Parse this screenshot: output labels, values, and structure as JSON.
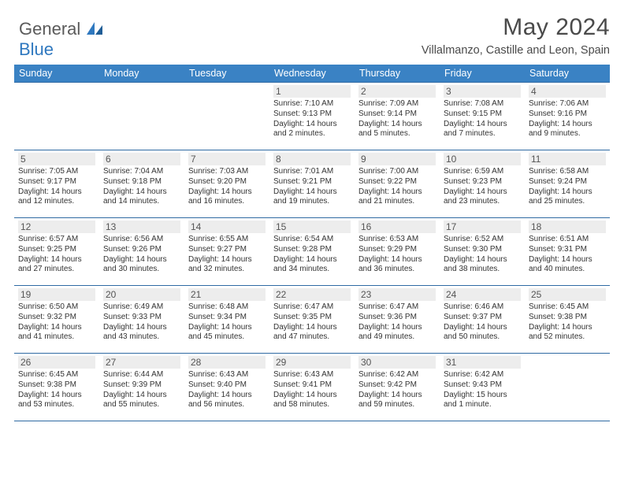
{
  "brand": {
    "part1": "General",
    "part2": "Blue"
  },
  "title": "May 2024",
  "location": "Villalmanzo, Castille and Leon, Spain",
  "colors": {
    "header_bg": "#3a82c4",
    "header_text": "#ffffff",
    "border": "#2f6aa3",
    "daynum_bg": "#ededed",
    "brand_gray": "#5a5a5a",
    "brand_blue": "#2f78bf",
    "page_bg": "#ffffff",
    "body_text": "#333333"
  },
  "typography": {
    "title_fontsize": 30,
    "location_fontsize": 14.5,
    "weekday_fontsize": 12.5,
    "daynum_fontsize": 12,
    "info_fontsize": 10
  },
  "layout": {
    "columns": 7,
    "rows": 5,
    "first_weekday_index": 3
  },
  "weekdays": [
    "Sunday",
    "Monday",
    "Tuesday",
    "Wednesday",
    "Thursday",
    "Friday",
    "Saturday"
  ],
  "weeks": [
    [
      null,
      null,
      null,
      {
        "n": "1",
        "sunrise": "Sunrise: 7:10 AM",
        "sunset": "Sunset: 9:13 PM",
        "daylight": "Daylight: 14 hours and 2 minutes."
      },
      {
        "n": "2",
        "sunrise": "Sunrise: 7:09 AM",
        "sunset": "Sunset: 9:14 PM",
        "daylight": "Daylight: 14 hours and 5 minutes."
      },
      {
        "n": "3",
        "sunrise": "Sunrise: 7:08 AM",
        "sunset": "Sunset: 9:15 PM",
        "daylight": "Daylight: 14 hours and 7 minutes."
      },
      {
        "n": "4",
        "sunrise": "Sunrise: 7:06 AM",
        "sunset": "Sunset: 9:16 PM",
        "daylight": "Daylight: 14 hours and 9 minutes."
      }
    ],
    [
      {
        "n": "5",
        "sunrise": "Sunrise: 7:05 AM",
        "sunset": "Sunset: 9:17 PM",
        "daylight": "Daylight: 14 hours and 12 minutes."
      },
      {
        "n": "6",
        "sunrise": "Sunrise: 7:04 AM",
        "sunset": "Sunset: 9:18 PM",
        "daylight": "Daylight: 14 hours and 14 minutes."
      },
      {
        "n": "7",
        "sunrise": "Sunrise: 7:03 AM",
        "sunset": "Sunset: 9:20 PM",
        "daylight": "Daylight: 14 hours and 16 minutes."
      },
      {
        "n": "8",
        "sunrise": "Sunrise: 7:01 AM",
        "sunset": "Sunset: 9:21 PM",
        "daylight": "Daylight: 14 hours and 19 minutes."
      },
      {
        "n": "9",
        "sunrise": "Sunrise: 7:00 AM",
        "sunset": "Sunset: 9:22 PM",
        "daylight": "Daylight: 14 hours and 21 minutes."
      },
      {
        "n": "10",
        "sunrise": "Sunrise: 6:59 AM",
        "sunset": "Sunset: 9:23 PM",
        "daylight": "Daylight: 14 hours and 23 minutes."
      },
      {
        "n": "11",
        "sunrise": "Sunrise: 6:58 AM",
        "sunset": "Sunset: 9:24 PM",
        "daylight": "Daylight: 14 hours and 25 minutes."
      }
    ],
    [
      {
        "n": "12",
        "sunrise": "Sunrise: 6:57 AM",
        "sunset": "Sunset: 9:25 PM",
        "daylight": "Daylight: 14 hours and 27 minutes."
      },
      {
        "n": "13",
        "sunrise": "Sunrise: 6:56 AM",
        "sunset": "Sunset: 9:26 PM",
        "daylight": "Daylight: 14 hours and 30 minutes."
      },
      {
        "n": "14",
        "sunrise": "Sunrise: 6:55 AM",
        "sunset": "Sunset: 9:27 PM",
        "daylight": "Daylight: 14 hours and 32 minutes."
      },
      {
        "n": "15",
        "sunrise": "Sunrise: 6:54 AM",
        "sunset": "Sunset: 9:28 PM",
        "daylight": "Daylight: 14 hours and 34 minutes."
      },
      {
        "n": "16",
        "sunrise": "Sunrise: 6:53 AM",
        "sunset": "Sunset: 9:29 PM",
        "daylight": "Daylight: 14 hours and 36 minutes."
      },
      {
        "n": "17",
        "sunrise": "Sunrise: 6:52 AM",
        "sunset": "Sunset: 9:30 PM",
        "daylight": "Daylight: 14 hours and 38 minutes."
      },
      {
        "n": "18",
        "sunrise": "Sunrise: 6:51 AM",
        "sunset": "Sunset: 9:31 PM",
        "daylight": "Daylight: 14 hours and 40 minutes."
      }
    ],
    [
      {
        "n": "19",
        "sunrise": "Sunrise: 6:50 AM",
        "sunset": "Sunset: 9:32 PM",
        "daylight": "Daylight: 14 hours and 41 minutes."
      },
      {
        "n": "20",
        "sunrise": "Sunrise: 6:49 AM",
        "sunset": "Sunset: 9:33 PM",
        "daylight": "Daylight: 14 hours and 43 minutes."
      },
      {
        "n": "21",
        "sunrise": "Sunrise: 6:48 AM",
        "sunset": "Sunset: 9:34 PM",
        "daylight": "Daylight: 14 hours and 45 minutes."
      },
      {
        "n": "22",
        "sunrise": "Sunrise: 6:47 AM",
        "sunset": "Sunset: 9:35 PM",
        "daylight": "Daylight: 14 hours and 47 minutes."
      },
      {
        "n": "23",
        "sunrise": "Sunrise: 6:47 AM",
        "sunset": "Sunset: 9:36 PM",
        "daylight": "Daylight: 14 hours and 49 minutes."
      },
      {
        "n": "24",
        "sunrise": "Sunrise: 6:46 AM",
        "sunset": "Sunset: 9:37 PM",
        "daylight": "Daylight: 14 hours and 50 minutes."
      },
      {
        "n": "25",
        "sunrise": "Sunrise: 6:45 AM",
        "sunset": "Sunset: 9:38 PM",
        "daylight": "Daylight: 14 hours and 52 minutes."
      }
    ],
    [
      {
        "n": "26",
        "sunrise": "Sunrise: 6:45 AM",
        "sunset": "Sunset: 9:38 PM",
        "daylight": "Daylight: 14 hours and 53 minutes."
      },
      {
        "n": "27",
        "sunrise": "Sunrise: 6:44 AM",
        "sunset": "Sunset: 9:39 PM",
        "daylight": "Daylight: 14 hours and 55 minutes."
      },
      {
        "n": "28",
        "sunrise": "Sunrise: 6:43 AM",
        "sunset": "Sunset: 9:40 PM",
        "daylight": "Daylight: 14 hours and 56 minutes."
      },
      {
        "n": "29",
        "sunrise": "Sunrise: 6:43 AM",
        "sunset": "Sunset: 9:41 PM",
        "daylight": "Daylight: 14 hours and 58 minutes."
      },
      {
        "n": "30",
        "sunrise": "Sunrise: 6:42 AM",
        "sunset": "Sunset: 9:42 PM",
        "daylight": "Daylight: 14 hours and 59 minutes."
      },
      {
        "n": "31",
        "sunrise": "Sunrise: 6:42 AM",
        "sunset": "Sunset: 9:43 PM",
        "daylight": "Daylight: 15 hours and 1 minute."
      },
      null
    ]
  ]
}
